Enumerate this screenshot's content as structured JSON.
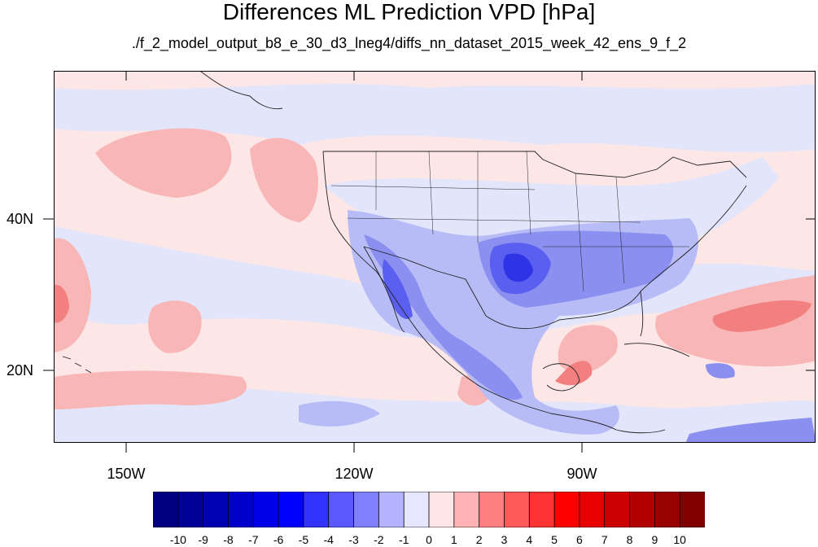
{
  "title": "Differences ML Prediction VPD [hPa]",
  "subtitle": "./f_2_model_output_b8_e_30_d3_lneg4/diffs_nn_dataset_2015_week_42_ens_9_f_2",
  "y_axis_labels": [
    "40N",
    "20N"
  ],
  "x_axis_labels": [
    "150W",
    "120W",
    "90W"
  ],
  "colorbar": {
    "labels": [
      "-10",
      "-9",
      "-8",
      "-7",
      "-6",
      "-5",
      "-4",
      "-3",
      "-2",
      "-1",
      "0",
      "1",
      "2",
      "3",
      "4",
      "5",
      "6",
      "7",
      "8",
      "9",
      "10"
    ],
    "colors": [
      "#000080",
      "#000099",
      "#0000b3",
      "#0000cc",
      "#0000e6",
      "#0000ff",
      "#3333ff",
      "#5959ff",
      "#8080ff",
      "#b3b3ff",
      "#e6e6ff",
      "#ffe6e6",
      "#ffb3b3",
      "#ff8080",
      "#ff5959",
      "#ff3333",
      "#ff0000",
      "#e60000",
      "#cc0000",
      "#b30000",
      "#990000",
      "#800000"
    ]
  },
  "palette": {
    "background": "#fde6e6",
    "light_blue": "#e3e6fb",
    "blue_1": "#b8bcf6",
    "blue_2": "#8a8ff0",
    "blue_3": "#5a5ff0",
    "blue_4": "#2f33e6",
    "pink": "#f8b6b6",
    "red": "#f28080",
    "border": "#222222"
  }
}
